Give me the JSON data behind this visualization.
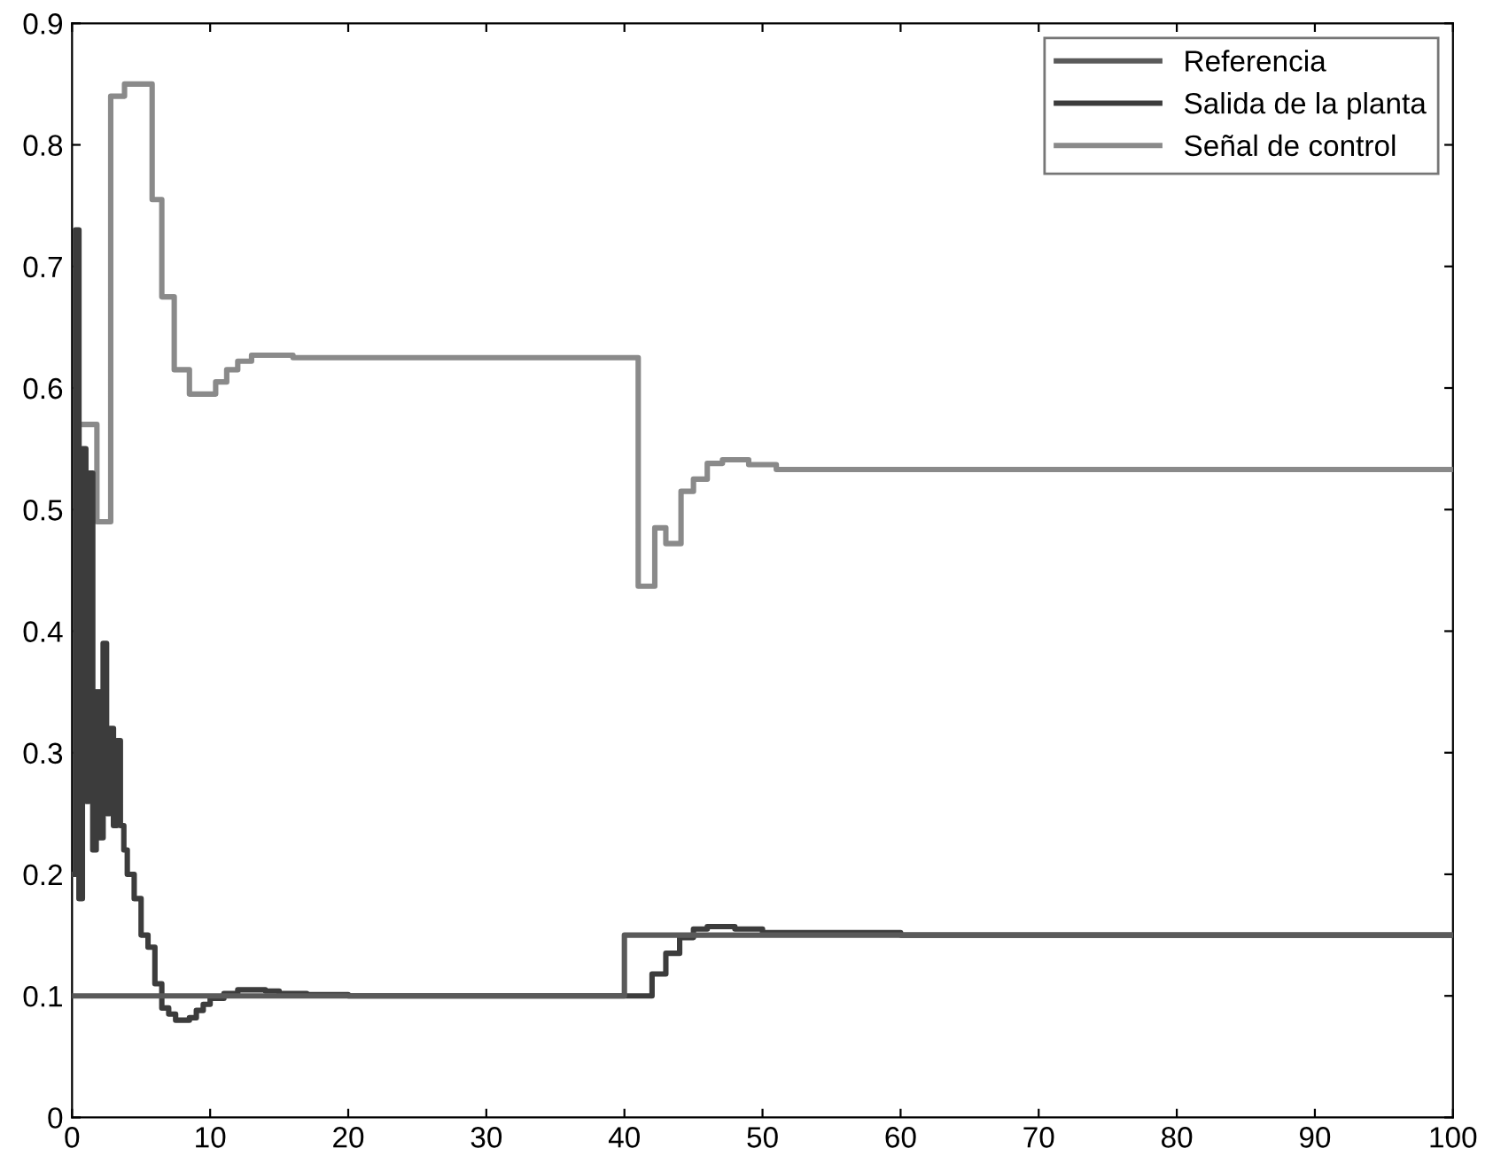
{
  "chart_data": {
    "type": "step",
    "xlim": [
      0,
      100
    ],
    "ylim": [
      0,
      0.9
    ],
    "xticks": [
      0,
      10,
      20,
      30,
      40,
      50,
      60,
      70,
      80,
      90,
      100
    ],
    "yticks": [
      0,
      0.1,
      0.2,
      0.3,
      0.4,
      0.5,
      0.6,
      0.7,
      0.8,
      0.9
    ],
    "grid": false,
    "legend": "top right",
    "series": [
      {
        "name": "Referencia",
        "color": "#5a5a5a",
        "x": [
          0,
          40,
          100
        ],
        "values": [
          0.1,
          0.15,
          0.15
        ]
      },
      {
        "name": "Salida de la planta",
        "color": "#3c3c3c",
        "x": [
          0,
          0.25,
          0.5,
          0.75,
          1.0,
          1.25,
          1.5,
          1.75,
          2.0,
          2.25,
          2.5,
          2.75,
          3.0,
          3.25,
          3.5,
          3.75,
          4.0,
          4.5,
          5,
          5.5,
          6,
          6.5,
          7,
          7.5,
          8,
          8.5,
          9,
          9.5,
          10,
          11,
          12,
          13,
          14,
          15,
          17,
          20,
          40,
          41,
          42,
          43,
          44,
          45,
          46,
          48,
          50,
          60,
          100
        ],
        "values": [
          0.2,
          0.73,
          0.18,
          0.55,
          0.26,
          0.53,
          0.22,
          0.35,
          0.23,
          0.39,
          0.25,
          0.32,
          0.24,
          0.31,
          0.24,
          0.22,
          0.2,
          0.18,
          0.15,
          0.14,
          0.11,
          0.09,
          0.085,
          0.08,
          0.08,
          0.082,
          0.088,
          0.093,
          0.098,
          0.102,
          0.105,
          0.105,
          0.104,
          0.102,
          0.101,
          0.1,
          0.1,
          0.1,
          0.118,
          0.135,
          0.148,
          0.155,
          0.157,
          0.155,
          0.152,
          0.15,
          0.15
        ]
      },
      {
        "name": "Señal de control",
        "color": "#8a8a8a",
        "x": [
          0,
          0.5,
          1.8,
          2.8,
          3.8,
          5.8,
          6.5,
          7.4,
          8.5,
          10.4,
          11.2,
          12,
          13,
          16,
          41,
          42.2,
          43,
          44.1,
          45,
          46,
          47.1,
          49,
          51,
          100
        ],
        "values": [
          0.2,
          0.57,
          0.49,
          0.84,
          0.85,
          0.755,
          0.675,
          0.615,
          0.595,
          0.605,
          0.615,
          0.622,
          0.627,
          0.625,
          0.437,
          0.485,
          0.472,
          0.515,
          0.525,
          0.538,
          0.541,
          0.537,
          0.533,
          0.533
        ]
      }
    ]
  }
}
